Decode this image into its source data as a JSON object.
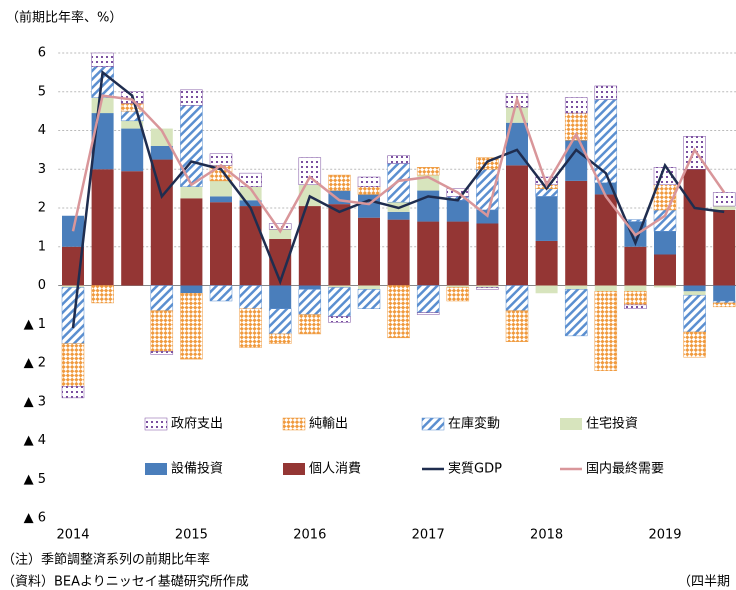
{
  "chart_data": {
    "type": "stacked-bar-line",
    "y_axis_label": "（前期比年率、%）",
    "x_axis_label": "（四半期",
    "notes": [
      "（注）季節調整済系列の前期比年率",
      "（資料）BEAよりニッセイ基礎研究所作成"
    ],
    "categories": [
      "2014",
      null,
      null,
      null,
      "2015",
      null,
      null,
      null,
      "2016",
      null,
      null,
      null,
      "2017",
      null,
      null,
      null,
      "2018",
      null,
      null,
      null,
      "2019",
      null,
      null
    ],
    "ylim": [
      -6,
      6
    ],
    "yticks": [
      6,
      5,
      4,
      3,
      2,
      1,
      0,
      {
        "value": -1,
        "label": "▲ 1"
      },
      {
        "value": -2,
        "label": "▲ 2"
      },
      {
        "value": -3,
        "label": "▲ 3"
      },
      {
        "value": -4,
        "label": "▲ 4"
      },
      {
        "value": -5,
        "label": "▲ 5"
      },
      {
        "value": -6,
        "label": "▲ 6"
      }
    ],
    "grid": true,
    "series": [
      {
        "name": "個人消費",
        "color": "#943634",
        "pattern": "solid",
        "values": [
          1.0,
          3.0,
          2.95,
          3.25,
          2.25,
          2.15,
          2.05,
          1.2,
          2.05,
          2.1,
          1.75,
          1.7,
          1.65,
          1.65,
          1.6,
          3.1,
          1.15,
          2.7,
          2.35,
          1.0,
          0.8,
          3.0,
          1.95
        ]
      },
      {
        "name": "設備投資",
        "color": "#4a7ebb",
        "pattern": "solid",
        "values": [
          0.8,
          1.45,
          1.1,
          0.35,
          -0.2,
          0.15,
          0.15,
          -0.6,
          -0.1,
          0.35,
          0.6,
          0.2,
          0.8,
          0.55,
          0.35,
          1.1,
          1.15,
          1.05,
          0.3,
          0.65,
          0.6,
          -0.15,
          -0.4
        ]
      },
      {
        "name": "住宅投資",
        "color": "#d7e4bd",
        "pattern": "solid",
        "values": [
          -0.05,
          0.4,
          0.2,
          0.45,
          0.3,
          0.4,
          0.35,
          0.25,
          0.55,
          -0.05,
          -0.1,
          0.25,
          0.4,
          -0.05,
          -0.05,
          0.4,
          -0.2,
          -0.1,
          -0.15,
          -0.15,
          -0.05,
          -0.1,
          0.1
        ]
      },
      {
        "name": "在庫変動",
        "color": "#5b8fd0",
        "pattern": "hatch",
        "values": [
          -1.45,
          0.8,
          0.25,
          -0.65,
          2.1,
          -0.4,
          -0.6,
          -0.65,
          -0.65,
          -0.75,
          -0.5,
          1.0,
          -0.7,
          0.1,
          1.05,
          -0.65,
          0.2,
          -1.2,
          2.15,
          0.05,
          0.55,
          -0.95,
          -0.05
        ]
      },
      {
        "name": "純輸出",
        "color": "#f09a3e",
        "pattern": "checker",
        "values": [
          -1.1,
          -0.45,
          0.2,
          -1.05,
          -1.7,
          0.4,
          -1.0,
          -0.25,
          -0.5,
          0.4,
          0.2,
          -1.35,
          0.2,
          -0.35,
          0.3,
          -0.8,
          0.1,
          0.7,
          -2.05,
          -0.35,
          0.65,
          -0.65,
          -0.1
        ]
      },
      {
        "name": "政府支出",
        "color": "#7b4fa0",
        "pattern": "dots",
        "values": [
          -0.3,
          0.35,
          0.3,
          -0.08,
          0.4,
          0.3,
          0.35,
          0.15,
          0.7,
          -0.15,
          0.25,
          0.2,
          -0.05,
          0.2,
          -0.05,
          0.35,
          0.2,
          0.4,
          0.35,
          -0.1,
          0.45,
          0.85,
          0.35
        ]
      }
    ],
    "lines": [
      {
        "name": "実質GDP",
        "color": "#1f2d4f",
        "values": [
          -1.1,
          5.5,
          4.9,
          2.3,
          3.2,
          3.0,
          2.0,
          0.1,
          2.3,
          1.9,
          2.2,
          2.0,
          2.3,
          2.2,
          3.2,
          3.5,
          2.5,
          3.5,
          2.9,
          1.1,
          3.1,
          2.0,
          1.9
        ]
      },
      {
        "name": "国内最終需要",
        "color": "#d9969a",
        "values": [
          1.4,
          4.9,
          4.8,
          4.0,
          2.6,
          3.1,
          2.5,
          1.4,
          2.8,
          2.2,
          2.1,
          2.7,
          2.8,
          2.4,
          1.8,
          4.8,
          2.6,
          3.9,
          2.3,
          1.3,
          1.8,
          3.5,
          2.4
        ]
      }
    ],
    "legend_order": [
      5,
      4,
      3,
      2,
      1,
      0
    ]
  }
}
